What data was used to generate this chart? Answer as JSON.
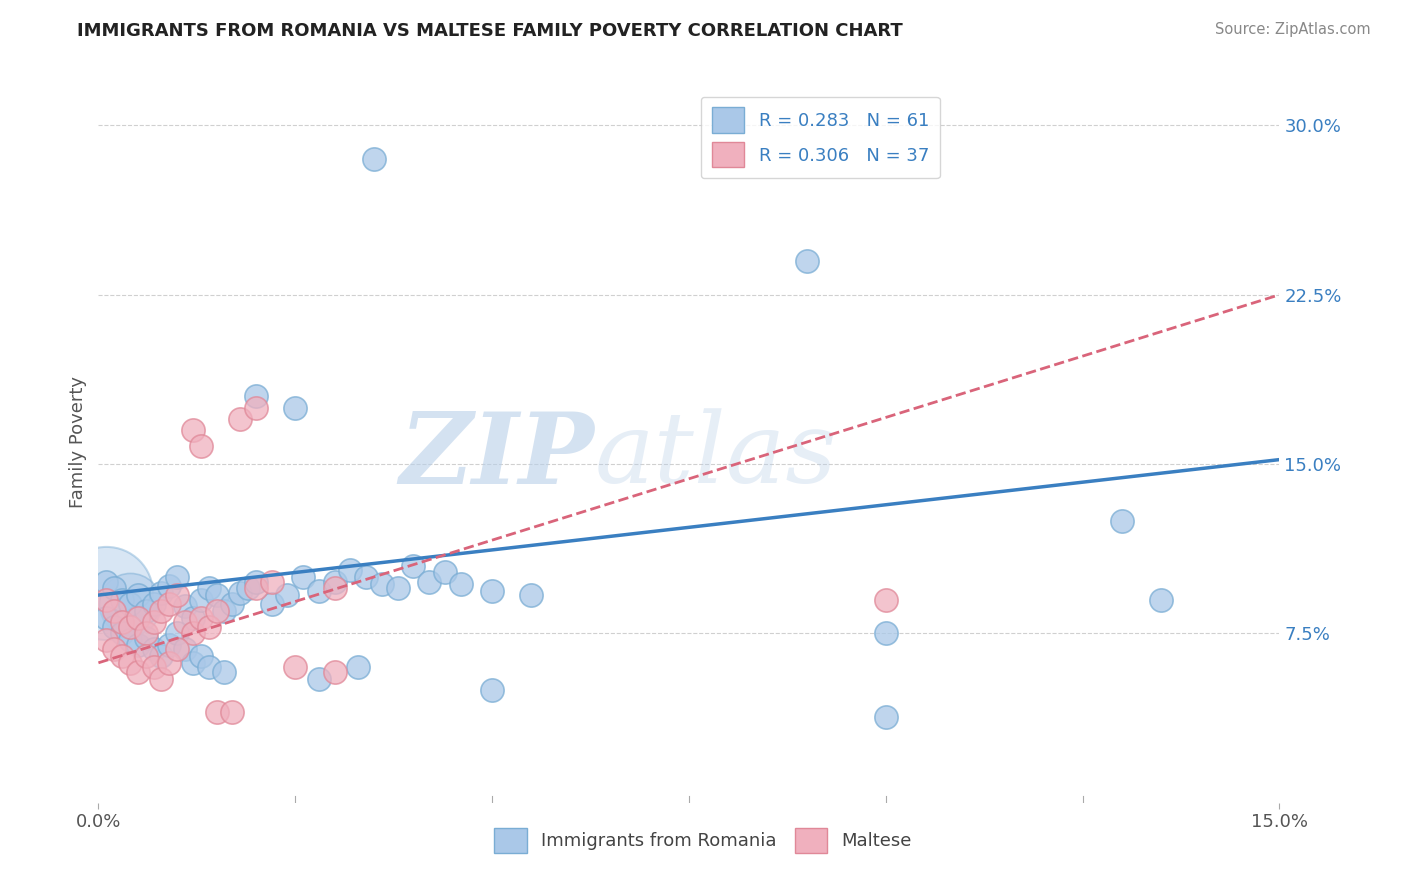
{
  "title": "IMMIGRANTS FROM ROMANIA VS MALTESE FAMILY POVERTY CORRELATION CHART",
  "source": "Source: ZipAtlas.com",
  "ylabel": "Family Poverty",
  "xlim": [
    0.0,
    0.15
  ],
  "ylim": [
    0.0,
    0.32
  ],
  "y_ticks": [
    0.075,
    0.15,
    0.225,
    0.3
  ],
  "y_tick_labels": [
    "7.5%",
    "15.0%",
    "22.5%",
    "30.0%"
  ],
  "x_tick_labels": [
    "0.0%",
    "15.0%"
  ],
  "legend_bottom": [
    "Immigrants from Romania",
    "Maltese"
  ],
  "blue_color": "#3a7fc1",
  "pink_color": "#d9647a",
  "scatter_blue_fill": "#aac8e8",
  "scatter_pink_fill": "#f0b0be",
  "scatter_blue_edge": "#7aadd4",
  "scatter_pink_edge": "#e08898",
  "grid_color": "#d0d0d0",
  "background_color": "#ffffff",
  "blue_line": [
    [
      0.0,
      0.092
    ],
    [
      0.15,
      0.152
    ]
  ],
  "pink_line": [
    [
      0.0,
      0.062
    ],
    [
      0.15,
      0.225
    ]
  ],
  "blue_points": [
    [
      0.001,
      0.098
    ],
    [
      0.002,
      0.095
    ],
    [
      0.003,
      0.09
    ],
    [
      0.004,
      0.088
    ],
    [
      0.005,
      0.092
    ],
    [
      0.006,
      0.085
    ],
    [
      0.007,
      0.088
    ],
    [
      0.008,
      0.093
    ],
    [
      0.009,
      0.096
    ],
    [
      0.01,
      0.1
    ],
    [
      0.011,
      0.087
    ],
    [
      0.012,
      0.082
    ],
    [
      0.013,
      0.09
    ],
    [
      0.014,
      0.095
    ],
    [
      0.015,
      0.092
    ],
    [
      0.016,
      0.085
    ],
    [
      0.017,
      0.088
    ],
    [
      0.018,
      0.093
    ],
    [
      0.019,
      0.095
    ],
    [
      0.02,
      0.098
    ],
    [
      0.022,
      0.088
    ],
    [
      0.024,
      0.092
    ],
    [
      0.026,
      0.1
    ],
    [
      0.028,
      0.094
    ],
    [
      0.03,
      0.098
    ],
    [
      0.032,
      0.103
    ],
    [
      0.034,
      0.1
    ],
    [
      0.036,
      0.097
    ],
    [
      0.038,
      0.095
    ],
    [
      0.04,
      0.105
    ],
    [
      0.042,
      0.098
    ],
    [
      0.044,
      0.102
    ],
    [
      0.046,
      0.097
    ],
    [
      0.05,
      0.094
    ],
    [
      0.055,
      0.092
    ],
    [
      0.001,
      0.082
    ],
    [
      0.002,
      0.078
    ],
    [
      0.003,
      0.075
    ],
    [
      0.004,
      0.072
    ],
    [
      0.005,
      0.07
    ],
    [
      0.006,
      0.073
    ],
    [
      0.007,
      0.068
    ],
    [
      0.008,
      0.065
    ],
    [
      0.009,
      0.07
    ],
    [
      0.01,
      0.075
    ],
    [
      0.011,
      0.068
    ],
    [
      0.012,
      0.062
    ],
    [
      0.013,
      0.065
    ],
    [
      0.014,
      0.06
    ],
    [
      0.016,
      0.058
    ],
    [
      0.035,
      0.285
    ],
    [
      0.09,
      0.24
    ],
    [
      0.13,
      0.125
    ],
    [
      0.135,
      0.09
    ],
    [
      0.1,
      0.075
    ],
    [
      0.02,
      0.18
    ],
    [
      0.025,
      0.175
    ],
    [
      0.028,
      0.055
    ],
    [
      0.033,
      0.06
    ],
    [
      0.05,
      0.05
    ],
    [
      0.1,
      0.038
    ]
  ],
  "pink_points": [
    [
      0.001,
      0.09
    ],
    [
      0.002,
      0.085
    ],
    [
      0.003,
      0.08
    ],
    [
      0.004,
      0.078
    ],
    [
      0.005,
      0.082
    ],
    [
      0.006,
      0.075
    ],
    [
      0.007,
      0.08
    ],
    [
      0.008,
      0.085
    ],
    [
      0.009,
      0.088
    ],
    [
      0.01,
      0.092
    ],
    [
      0.011,
      0.08
    ],
    [
      0.012,
      0.075
    ],
    [
      0.013,
      0.082
    ],
    [
      0.014,
      0.078
    ],
    [
      0.015,
      0.085
    ],
    [
      0.001,
      0.072
    ],
    [
      0.002,
      0.068
    ],
    [
      0.003,
      0.065
    ],
    [
      0.004,
      0.062
    ],
    [
      0.005,
      0.058
    ],
    [
      0.006,
      0.065
    ],
    [
      0.007,
      0.06
    ],
    [
      0.008,
      0.055
    ],
    [
      0.009,
      0.062
    ],
    [
      0.01,
      0.068
    ],
    [
      0.018,
      0.17
    ],
    [
      0.02,
      0.175
    ],
    [
      0.012,
      0.165
    ],
    [
      0.013,
      0.158
    ],
    [
      0.02,
      0.095
    ],
    [
      0.022,
      0.098
    ],
    [
      0.03,
      0.095
    ],
    [
      0.025,
      0.06
    ],
    [
      0.03,
      0.058
    ],
    [
      0.1,
      0.09
    ],
    [
      0.015,
      0.04
    ],
    [
      0.017,
      0.04
    ]
  ],
  "large_blue_bubble": [
    0.001,
    0.093
  ],
  "watermark_zip": "ZIP",
  "watermark_atlas": "atlas"
}
